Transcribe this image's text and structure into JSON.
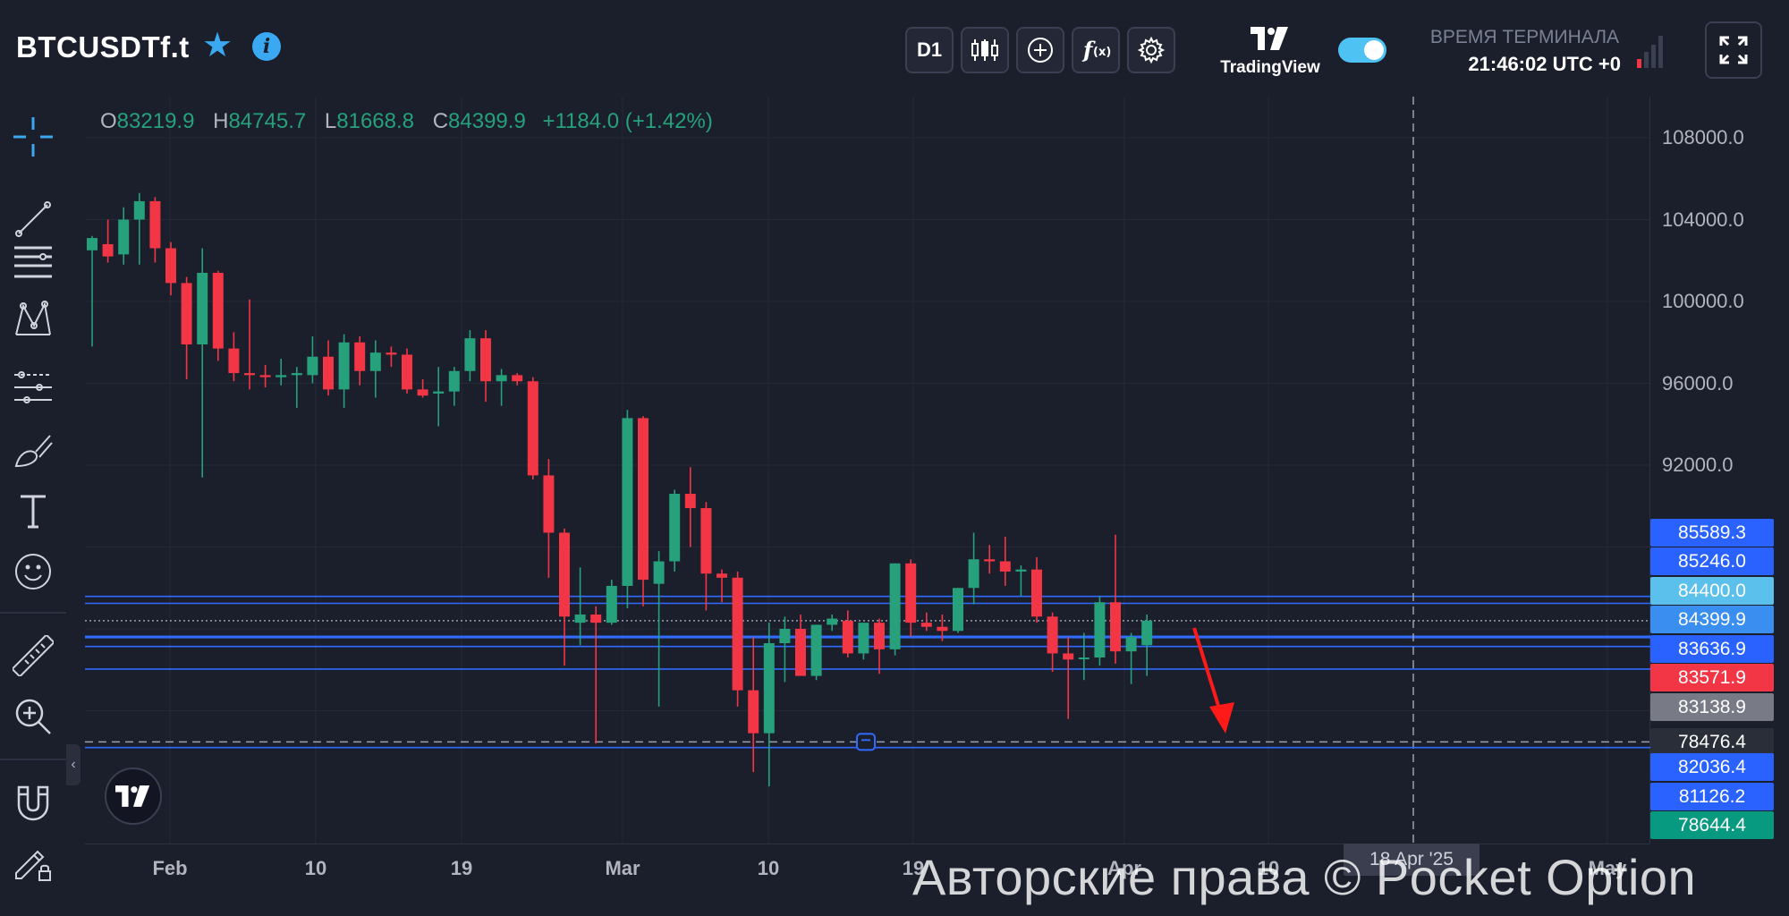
{
  "header": {
    "symbol": "BTCUSDTf.t",
    "timeframe_label": "D1",
    "brand_name": "TradingView",
    "terminal_label": "ВРЕМЯ ТЕРМИНАЛА",
    "terminal_time": "21:46:02 UTC +0"
  },
  "ohlc": {
    "open_label": "O",
    "open": "83219.9",
    "high_label": "H",
    "high": "84745.7",
    "low_label": "L",
    "low": "81668.8",
    "close_label": "C",
    "close": "84399.9",
    "change": "+1184.0 (+1.42%)"
  },
  "colors": {
    "background": "#1b1e2b",
    "up": "#26a17b",
    "down": "#f23645",
    "accent": "#3aa9f2",
    "level_line": "#2f6bff",
    "arrow": "#ff1a1a"
  },
  "price_axis": {
    "ticks": [
      "108000.0",
      "104000.0",
      "100000.0",
      "96000.0",
      "92000.0"
    ],
    "badges": [
      {
        "label": "85589.3",
        "color": "#2962ff"
      },
      {
        "label": "85246.0",
        "color": "#2962ff"
      },
      {
        "label": "84400.0",
        "color": "#5bc0eb"
      },
      {
        "label": "84399.9",
        "color": "#3a8ef0"
      },
      {
        "label": "83636.9",
        "color": "#2962ff"
      },
      {
        "label": "83571.9",
        "color": "#f23645"
      },
      {
        "label": "83138.9",
        "color": "#787b86"
      },
      {
        "label": "78476.4",
        "color": "#2a2e39"
      },
      {
        "label": "82036.4",
        "color": "#2962ff"
      },
      {
        "label": "81126.2",
        "color": "#2962ff"
      },
      {
        "label": "78644.4",
        "color": "#089981"
      }
    ]
  },
  "time_axis": {
    "ticks": [
      "Feb",
      "10",
      "19",
      "Mar",
      "10",
      "19",
      "Apr",
      "10",
      "May"
    ],
    "crosshair_date": "18 Apr '25"
  },
  "chart_data": {
    "type": "candlestick",
    "y_range": [
      76000,
      110000
    ],
    "candles": [
      {
        "o": 102500,
        "h": 103200,
        "l": 97800,
        "c": 103100
      },
      {
        "o": 102800,
        "h": 104000,
        "l": 101900,
        "c": 102200
      },
      {
        "o": 102300,
        "h": 104600,
        "l": 101800,
        "c": 104000
      },
      {
        "o": 104000,
        "h": 105300,
        "l": 101800,
        "c": 104900
      },
      {
        "o": 104900,
        "h": 105100,
        "l": 101900,
        "c": 102600
      },
      {
        "o": 102600,
        "h": 102900,
        "l": 100300,
        "c": 100900
      },
      {
        "o": 100900,
        "h": 101200,
        "l": 96200,
        "c": 97900
      },
      {
        "o": 97900,
        "h": 102600,
        "l": 91400,
        "c": 101400
      },
      {
        "o": 101400,
        "h": 101500,
        "l": 97100,
        "c": 97700
      },
      {
        "o": 97700,
        "h": 98500,
        "l": 96100,
        "c": 96500
      },
      {
        "o": 96500,
        "h": 100100,
        "l": 95700,
        "c": 96400
      },
      {
        "o": 96400,
        "h": 96900,
        "l": 95800,
        "c": 96300
      },
      {
        "o": 96300,
        "h": 97200,
        "l": 95900,
        "c": 96400
      },
      {
        "o": 96400,
        "h": 96800,
        "l": 94800,
        "c": 96500
      },
      {
        "o": 96400,
        "h": 98300,
        "l": 96000,
        "c": 97300
      },
      {
        "o": 97300,
        "h": 98100,
        "l": 95400,
        "c": 95700
      },
      {
        "o": 95700,
        "h": 98400,
        "l": 94800,
        "c": 98000
      },
      {
        "o": 98000,
        "h": 98300,
        "l": 95900,
        "c": 96600
      },
      {
        "o": 96600,
        "h": 98100,
        "l": 95300,
        "c": 97500
      },
      {
        "o": 97500,
        "h": 97800,
        "l": 96800,
        "c": 97400
      },
      {
        "o": 97400,
        "h": 97700,
        "l": 95500,
        "c": 95700
      },
      {
        "o": 95700,
        "h": 96200,
        "l": 95300,
        "c": 95400
      },
      {
        "o": 95500,
        "h": 96800,
        "l": 93900,
        "c": 95600
      },
      {
        "o": 95600,
        "h": 96800,
        "l": 94900,
        "c": 96600
      },
      {
        "o": 96600,
        "h": 98600,
        "l": 96100,
        "c": 98200
      },
      {
        "o": 98200,
        "h": 98600,
        "l": 95100,
        "c": 96100
      },
      {
        "o": 96100,
        "h": 96700,
        "l": 94900,
        "c": 96400
      },
      {
        "o": 96400,
        "h": 96500,
        "l": 95900,
        "c": 96100
      },
      {
        "o": 96100,
        "h": 96300,
        "l": 91300,
        "c": 91500
      },
      {
        "o": 91500,
        "h": 92300,
        "l": 86500,
        "c": 88700
      },
      {
        "o": 88700,
        "h": 88900,
        "l": 82200,
        "c": 84600
      },
      {
        "o": 84300,
        "h": 87000,
        "l": 83200,
        "c": 84700
      },
      {
        "o": 84700,
        "h": 85100,
        "l": 78400,
        "c": 84300
      },
      {
        "o": 84300,
        "h": 86400,
        "l": 84200,
        "c": 86100
      },
      {
        "o": 86100,
        "h": 94700,
        "l": 85000,
        "c": 94300
      },
      {
        "o": 94300,
        "h": 94400,
        "l": 85100,
        "c": 86400
      },
      {
        "o": 86200,
        "h": 87800,
        "l": 80200,
        "c": 87300
      },
      {
        "o": 87300,
        "h": 90800,
        "l": 86800,
        "c": 90600
      },
      {
        "o": 90600,
        "h": 91900,
        "l": 88000,
        "c": 89900
      },
      {
        "o": 89900,
        "h": 90200,
        "l": 84900,
        "c": 86700
      },
      {
        "o": 86700,
        "h": 86900,
        "l": 85300,
        "c": 86500
      },
      {
        "o": 86500,
        "h": 86800,
        "l": 80200,
        "c": 81000
      },
      {
        "o": 81000,
        "h": 83600,
        "l": 77000,
        "c": 78900
      },
      {
        "o": 78900,
        "h": 84300,
        "l": 76300,
        "c": 83300
      },
      {
        "o": 83300,
        "h": 84600,
        "l": 81400,
        "c": 84000
      },
      {
        "o": 84000,
        "h": 84700,
        "l": 81800,
        "c": 81700
      },
      {
        "o": 81700,
        "h": 84200,
        "l": 81500,
        "c": 84200
      },
      {
        "o": 84200,
        "h": 84700,
        "l": 83900,
        "c": 84500
      },
      {
        "o": 84400,
        "h": 84900,
        "l": 82600,
        "c": 82800
      },
      {
        "o": 82800,
        "h": 84300,
        "l": 82500,
        "c": 84300
      },
      {
        "o": 84300,
        "h": 84500,
        "l": 81800,
        "c": 83000
      },
      {
        "o": 83000,
        "h": 87200,
        "l": 82700,
        "c": 87200
      },
      {
        "o": 87200,
        "h": 87400,
        "l": 83600,
        "c": 84300
      },
      {
        "o": 84300,
        "h": 84800,
        "l": 83900,
        "c": 84100
      },
      {
        "o": 84100,
        "h": 84700,
        "l": 83400,
        "c": 83900
      },
      {
        "o": 83900,
        "h": 86000,
        "l": 83800,
        "c": 86000
      },
      {
        "o": 86000,
        "h": 88700,
        "l": 85200,
        "c": 87400
      },
      {
        "o": 87400,
        "h": 88100,
        "l": 86700,
        "c": 87300
      },
      {
        "o": 87300,
        "h": 88500,
        "l": 86100,
        "c": 86800
      },
      {
        "o": 86800,
        "h": 87100,
        "l": 85600,
        "c": 86900
      },
      {
        "o": 86900,
        "h": 87500,
        "l": 84300,
        "c": 84600
      },
      {
        "o": 84600,
        "h": 84800,
        "l": 81900,
        "c": 82800
      },
      {
        "o": 82800,
        "h": 83600,
        "l": 79600,
        "c": 82500
      },
      {
        "o": 82600,
        "h": 83800,
        "l": 81500,
        "c": 82600
      },
      {
        "o": 82600,
        "h": 85600,
        "l": 82200,
        "c": 85300
      },
      {
        "o": 85300,
        "h": 88600,
        "l": 82300,
        "c": 82900
      },
      {
        "o": 82900,
        "h": 83800,
        "l": 81300,
        "c": 83600
      },
      {
        "o": 83200,
        "h": 84700,
        "l": 81700,
        "c": 84400
      }
    ]
  }
}
